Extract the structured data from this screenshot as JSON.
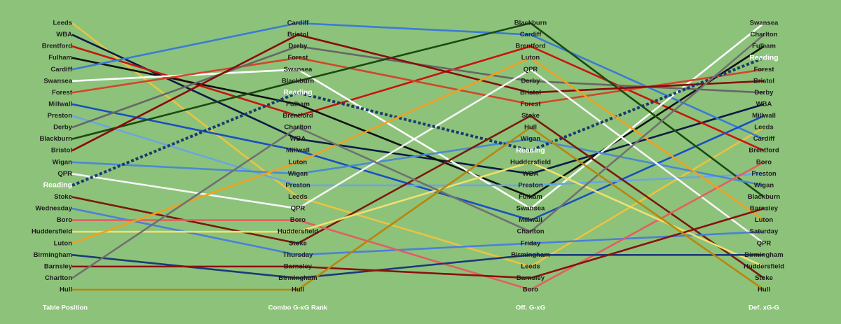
{
  "chart_data": {
    "type": "slope",
    "columns": [
      {
        "title": "Table Position",
        "labels": [
          "Leeds",
          "WBA",
          "Brentford",
          "Fulham",
          "Cardiff",
          "Swansea",
          "Forest",
          "Millwall",
          "Preston",
          "Derby",
          "Blackburn",
          "Bristol",
          "Wigan",
          "QPR",
          "Reading",
          "Stoke",
          "Wednesday",
          "Boro",
          "Huddersfield",
          "Luton",
          "Birmingham",
          "Barnsley",
          "Charlton",
          "Hull"
        ]
      },
      {
        "title": "Combo G-xG Rank",
        "labels": [
          "Cardiff",
          "Bristol",
          "Derby",
          "Forest",
          "Swansea",
          "Blackburn",
          "Reading",
          "Fulham",
          "Brentford",
          "Charlton",
          "WBA",
          "Millwall",
          "Luton",
          "Wigan",
          "Preston",
          "Leeds",
          "QPR",
          "Boro",
          "Huddersfield",
          "Stoke",
          "Thursday",
          "Barnsley",
          "Birmingham",
          "Hull"
        ]
      },
      {
        "title": "Off. G-xG",
        "labels": [
          "Blackburn",
          "Cardiff",
          "Brentford",
          "Luton",
          "QPR",
          "Derby",
          "Bristol",
          "Forest",
          "Stoke",
          "Hull",
          "Wigan",
          "Reading",
          "Huddersfield",
          "WBA",
          "Preston",
          "Fulham",
          "Swansea",
          "Millwall",
          "Charlton",
          "Friday",
          "Birmingham",
          "Leeds",
          "Barnsley",
          "Boro"
        ]
      },
      {
        "title": "Def. xG-G",
        "labels": [
          "Swansea",
          "Charlton",
          "Fulham",
          "Reading",
          "Forest",
          "Bristol",
          "Derby",
          "WBA",
          "Millwall",
          "Leeds",
          "Cardiff",
          "Brentford",
          "Boro",
          "Preston",
          "Wigan",
          "Blackburn",
          "Barnsley",
          "Luton",
          "Saturday",
          "QPR",
          "Birmingham",
          "Huddersfield",
          "Stoke",
          "Hull"
        ]
      }
    ],
    "series": [
      {
        "color": "#e9c440",
        "values": [
          1,
          16,
          22,
          10
        ]
      },
      {
        "color": "#0e1a45",
        "values": [
          2,
          11,
          14,
          8
        ]
      },
      {
        "color": "#c8140f",
        "values": [
          3,
          9,
          3,
          12
        ]
      },
      {
        "color": "#111111",
        "values": [
          4,
          8,
          16,
          3
        ]
      },
      {
        "color": "#3a7bd5",
        "values": [
          5,
          1,
          2,
          11
        ]
      },
      {
        "color": "#ffffff",
        "values": [
          6,
          5,
          17,
          1
        ]
      },
      {
        "color": "#d2452a",
        "values": [
          7,
          4,
          8,
          5
        ]
      },
      {
        "color": "#1a4fc0",
        "values": [
          8,
          12,
          18,
          9
        ]
      },
      {
        "color": "#6aa6e0",
        "values": [
          9,
          15,
          15,
          14
        ]
      },
      {
        "color": "#666666",
        "values": [
          10,
          3,
          6,
          7
        ]
      },
      {
        "color": "#1a4a10",
        "values": [
          11,
          6,
          1,
          16
        ]
      },
      {
        "color": "#8b0a0a",
        "values": [
          12,
          2,
          7,
          6
        ]
      },
      {
        "color": "#4a8ad0",
        "values": [
          13,
          14,
          11,
          15
        ]
      },
      {
        "color": "#f5f5f5",
        "values": [
          14,
          17,
          5,
          20
        ]
      },
      {
        "color": "#1a3a6e",
        "values": [
          15,
          7,
          12,
          4
        ],
        "dashed": true
      },
      {
        "color": "#7a1a0a",
        "values": [
          16,
          20,
          9,
          23
        ]
      },
      {
        "color": "#4a80d8",
        "values": [
          17,
          21,
          20,
          19
        ]
      },
      {
        "color": "#e06060",
        "values": [
          18,
          18,
          24,
          13
        ]
      },
      {
        "color": "#f0e070",
        "values": [
          19,
          19,
          13,
          22
        ]
      },
      {
        "color": "#f0a020",
        "values": [
          20,
          13,
          4,
          18
        ]
      },
      {
        "color": "#1a3a7a",
        "values": [
          21,
          23,
          21,
          21
        ]
      },
      {
        "color": "#8a1010",
        "values": [
          22,
          22,
          23,
          17
        ]
      },
      {
        "color": "#707070",
        "values": [
          23,
          10,
          19,
          2
        ]
      },
      {
        "color": "#b8860b",
        "values": [
          24,
          24,
          10,
          24
        ]
      }
    ]
  }
}
